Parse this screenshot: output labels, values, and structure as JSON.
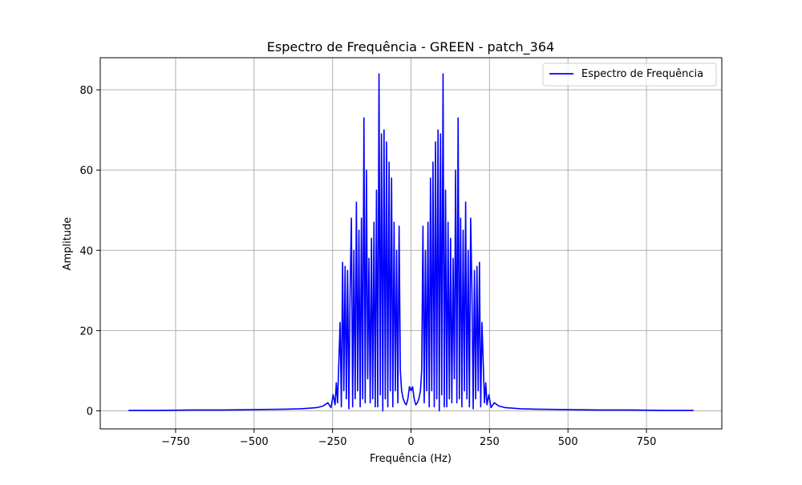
{
  "chart_data": {
    "type": "line",
    "title": "Espectro de Frequência - GREEN - patch_364",
    "xlabel": "Frequência (Hz)",
    "ylabel": "Amplitude",
    "xlim": [
      -990,
      990
    ],
    "ylim": [
      -4.5,
      88
    ],
    "xticks": [
      -750,
      -500,
      -250,
      0,
      250,
      500,
      750
    ],
    "xtick_labels": [
      "−750",
      "−500",
      "−250",
      "0",
      "250",
      "500",
      "750"
    ],
    "yticks": [
      0,
      20,
      40,
      60,
      80
    ],
    "ytick_labels": [
      "0",
      "20",
      "40",
      "60",
      "80"
    ],
    "grid": true,
    "legend_position": "top-right",
    "series": [
      {
        "name": "Espectro de Frequência",
        "color": "#0000ff",
        "x": [
          -900,
          -800,
          -700,
          -600,
          -500,
          -400,
          -350,
          -300,
          -280,
          -265,
          -255,
          -248,
          -242,
          -238,
          -234,
          -230,
          -226,
          -222,
          -218,
          -214,
          -210,
          -206,
          -202,
          -198,
          -194,
          -190,
          -186,
          -182,
          -178,
          -174,
          -170,
          -166,
          -162,
          -158,
          -154,
          -150,
          -146,
          -142,
          -138,
          -134,
          -130,
          -126,
          -122,
          -118,
          -114,
          -110,
          -106,
          -102,
          -98,
          -94,
          -90,
          -86,
          -82,
          -78,
          -74,
          -70,
          -66,
          -62,
          -58,
          -54,
          -50,
          -46,
          -42,
          -38,
          -34,
          -30,
          -25,
          -20,
          -15,
          -10,
          -5,
          0,
          5,
          10,
          15,
          20,
          25,
          30,
          34,
          38,
          42,
          46,
          50,
          54,
          58,
          62,
          66,
          70,
          74,
          78,
          82,
          86,
          90,
          94,
          98,
          102,
          106,
          110,
          114,
          118,
          122,
          126,
          130,
          134,
          138,
          142,
          146,
          150,
          154,
          158,
          162,
          166,
          170,
          174,
          178,
          182,
          186,
          190,
          194,
          198,
          202,
          206,
          210,
          214,
          218,
          222,
          226,
          230,
          234,
          238,
          242,
          248,
          255,
          265,
          280,
          300,
          350,
          400,
          500,
          600,
          700,
          800,
          900
        ],
        "y": [
          0.1,
          0.1,
          0.2,
          0.2,
          0.3,
          0.4,
          0.5,
          0.8,
          1.2,
          2,
          0.8,
          4,
          1.5,
          7,
          2,
          12,
          22,
          1,
          37,
          5,
          36,
          3,
          35,
          0.5,
          30,
          48,
          1,
          40,
          3,
          52,
          5,
          45,
          1,
          48,
          3,
          73,
          2,
          60,
          8,
          38,
          2,
          43,
          3,
          47,
          1,
          55,
          1,
          84,
          4,
          69,
          0,
          70,
          3,
          67,
          1,
          62,
          5,
          58,
          1,
          47,
          5,
          40,
          2,
          46,
          10,
          5,
          3,
          2,
          1.5,
          3,
          6,
          5,
          6,
          3,
          1.5,
          2,
          3,
          5,
          10,
          46,
          2,
          40,
          5,
          47,
          1,
          58,
          5,
          62,
          1,
          67,
          3,
          70,
          0,
          69,
          4,
          84,
          1,
          55,
          1,
          47,
          3,
          43,
          2,
          38,
          8,
          60,
          2,
          73,
          3,
          48,
          1,
          45,
          5,
          52,
          3,
          40,
          1,
          48,
          30,
          0.5,
          35,
          3,
          36,
          5,
          37,
          1,
          22,
          12,
          2,
          7,
          1.5,
          4,
          0.8,
          2,
          1.2,
          0.8,
          0.5,
          0.4,
          0.3,
          0.2,
          0.2,
          0.1,
          0.1
        ]
      }
    ]
  }
}
